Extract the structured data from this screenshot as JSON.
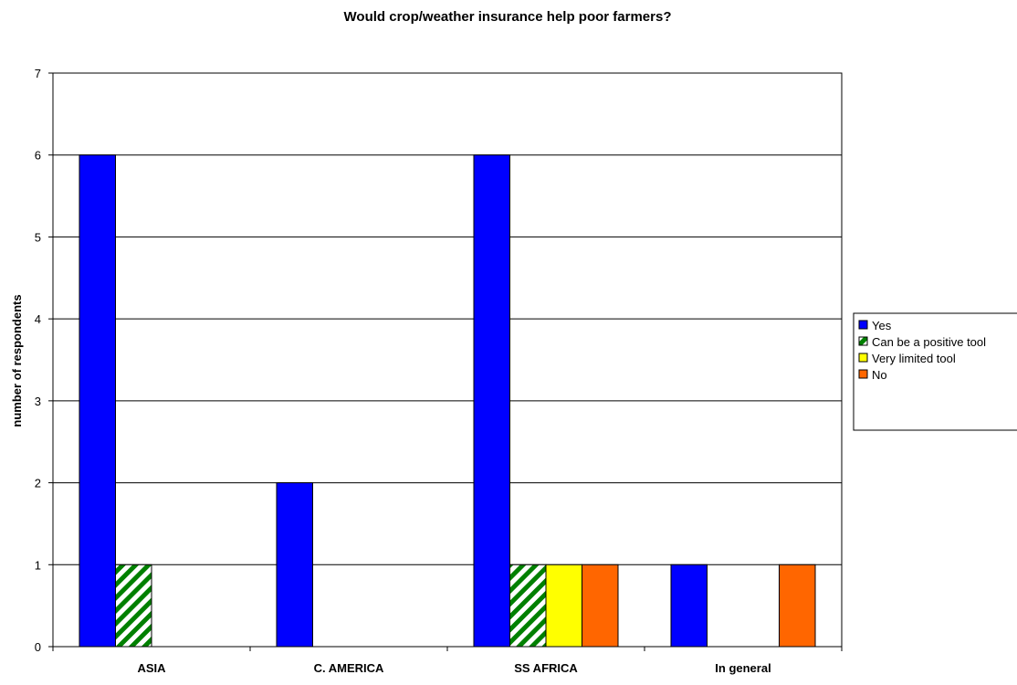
{
  "chart_data": {
    "type": "bar",
    "title": "Would crop/weather insurance help poor farmers?",
    "xlabel": "",
    "ylabel": "number of respondents",
    "categories": [
      "ASIA",
      "C. AMERICA",
      "SS AFRICA",
      "In general"
    ],
    "ylim": [
      0,
      7
    ],
    "yticks": [
      "0",
      "1",
      "2",
      "3",
      "4",
      "5",
      "6",
      "7"
    ],
    "grid": true,
    "legend_position": "right",
    "series": [
      {
        "name": "Yes",
        "values": [
          6,
          2,
          6,
          1
        ],
        "color": "#0000ff",
        "pattern": "solid"
      },
      {
        "name": "Can be a positive tool",
        "values": [
          1,
          0,
          1,
          0
        ],
        "color": "#008000",
        "pattern": "diagonal-stripes"
      },
      {
        "name": "Very limited tool",
        "values": [
          0,
          0,
          1,
          0
        ],
        "color": "#ffff00",
        "pattern": "solid"
      },
      {
        "name": "No",
        "values": [
          0,
          0,
          1,
          1
        ],
        "color": "#ff6600",
        "pattern": "solid"
      }
    ]
  }
}
